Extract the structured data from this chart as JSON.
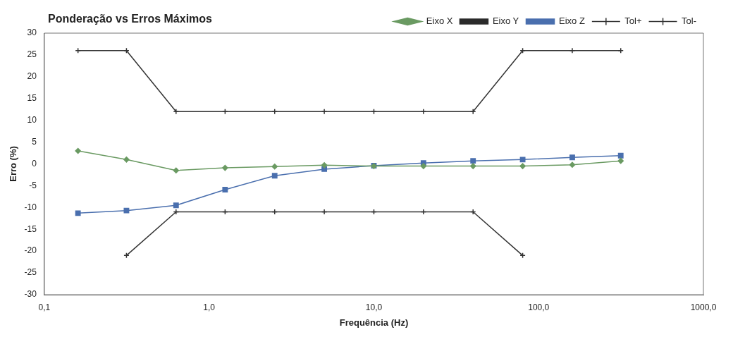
{
  "chart_data": {
    "type": "line",
    "title": "Ponderação vs Erros Máximos",
    "xlabel": "Frequência (Hz)",
    "ylabel": "Erro (%)",
    "x": [
      0.16,
      0.315,
      0.63,
      1.25,
      2.5,
      5,
      10,
      20,
      40,
      80,
      160,
      315
    ],
    "log": "x",
    "xlim": [
      0.1,
      1000
    ],
    "xticks": [
      {
        "value": 0.1,
        "label": "0,1"
      },
      {
        "value": 1,
        "label": "1,0"
      },
      {
        "value": 10,
        "label": "10,0"
      },
      {
        "value": 100,
        "label": "100,0"
      },
      {
        "value": 1000,
        "label": "1000,0"
      }
    ],
    "ylim": [
      -30,
      30
    ],
    "yticks": [
      -30,
      -25,
      -20,
      -15,
      -10,
      -5,
      0,
      5,
      10,
      15,
      20,
      25,
      30
    ],
    "grid": false,
    "legend": "top right",
    "line_style": "solid",
    "series": [
      {
        "name": "Eixo X",
        "color": "#6a9a62",
        "marker": "diamond",
        "values": [
          3,
          1,
          -1.5,
          -0.9,
          -0.6,
          -0.3,
          -0.5,
          -0.5,
          -0.5,
          -0.5,
          -0.2,
          0.7
        ]
      },
      {
        "name": "Eixo Y",
        "color": "#2b2b2b",
        "marker": "square",
        "values": [
          null,
          null,
          null,
          null,
          null,
          null,
          null,
          null,
          null,
          null,
          null,
          null
        ]
      },
      {
        "name": "Eixo Z",
        "color": "#4a6fae",
        "marker": "square",
        "values": [
          -11.3,
          -10.7,
          -9.5,
          -5.9,
          -2.7,
          -1.2,
          -0.4,
          0.2,
          0.7,
          1,
          1.5,
          1.9
        ]
      },
      {
        "name": "Tol+",
        "color": "#333333",
        "marker": "cross",
        "values": [
          26,
          26,
          12,
          12,
          12,
          12,
          12,
          12,
          12,
          26,
          26,
          26
        ]
      },
      {
        "name": "Tol-",
        "color": "#333333",
        "marker": "cross",
        "values": [
          null,
          -21,
          -11,
          -11,
          -11,
          -11,
          -11,
          -11,
          -11,
          -21,
          null,
          null
        ]
      }
    ]
  }
}
